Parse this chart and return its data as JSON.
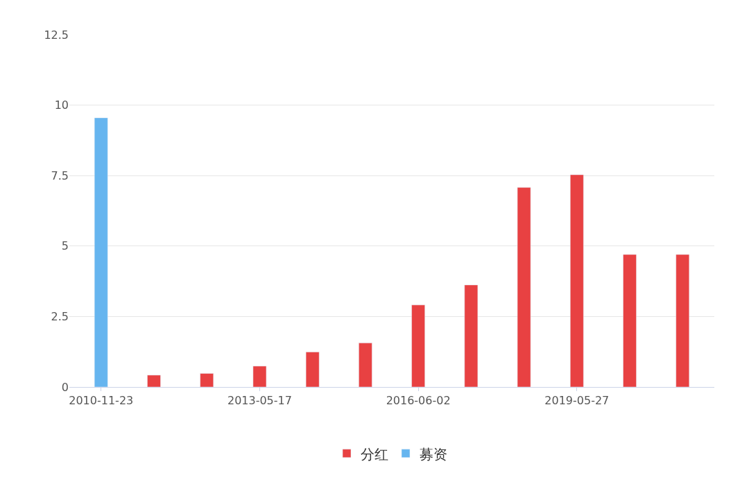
{
  "chart_data": {
    "type": "bar",
    "categories": [
      "2010-11-23",
      null,
      null,
      "2013-05-17",
      null,
      null,
      "2016-06-02",
      null,
      null,
      "2019-05-27",
      null,
      null
    ],
    "series": [
      {
        "name": "分红",
        "color": "#e84142",
        "values": [
          null,
          0.42,
          0.48,
          0.74,
          1.24,
          1.56,
          2.91,
          3.62,
          7.08,
          7.53,
          4.7,
          4.7
        ]
      },
      {
        "name": "募资",
        "color": "#66b5ef",
        "values": [
          9.55,
          null,
          null,
          null,
          null,
          null,
          null,
          null,
          null,
          null,
          null,
          null
        ]
      }
    ],
    "ylim": [
      0,
      12.5
    ],
    "yticks": [
      0,
      {
        "value": 2.5,
        "label": "2.5"
      },
      5,
      {
        "value": 7.5,
        "label": "7.5"
      },
      10,
      {
        "value": 12.5,
        "label": "12.5"
      }
    ],
    "grid": "y",
    "legend": "bottom"
  }
}
